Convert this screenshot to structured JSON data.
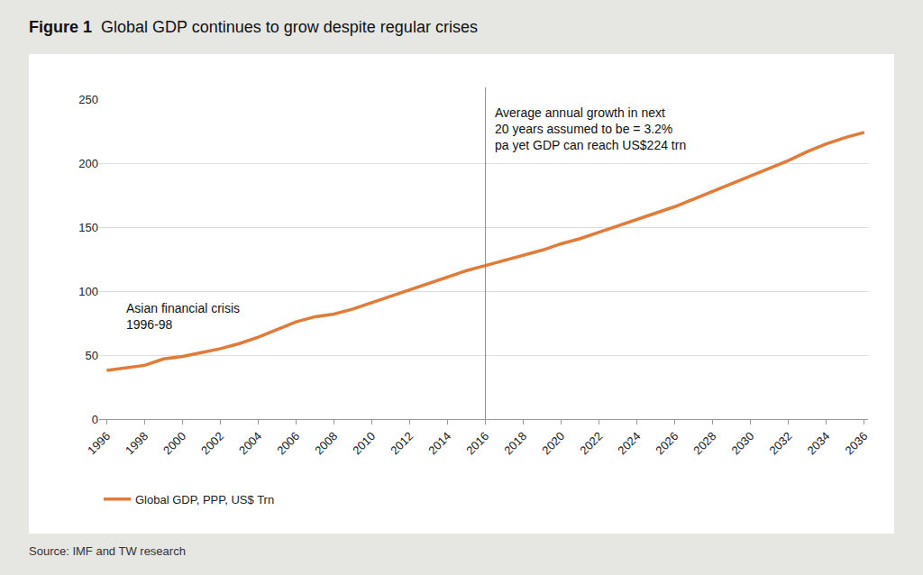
{
  "chart_data": {
    "type": "line",
    "title": "Figure 1  Global GDP continues to grow despite regular crises",
    "source": "Source: IMF and TW research",
    "x": [
      1996,
      1997,
      1998,
      1999,
      2000,
      2001,
      2002,
      2003,
      2004,
      2005,
      2006,
      2007,
      2008,
      2009,
      2010,
      2011,
      2012,
      2013,
      2014,
      2015,
      2016,
      2017,
      2018,
      2019,
      2020,
      2021,
      2022,
      2023,
      2024,
      2025,
      2026,
      2027,
      2028,
      2029,
      2030,
      2031,
      2032,
      2033,
      2034,
      2035,
      2036
    ],
    "series": [
      {
        "name": "Global GDP, PPP, US$ Trn",
        "color": "#e07b39",
        "values": [
          38,
          40,
          42,
          47,
          49,
          52,
          55,
          59,
          64,
          70,
          76,
          80,
          82,
          86,
          91,
          96,
          101,
          106,
          111,
          116,
          120,
          124,
          128,
          132,
          137,
          141,
          146,
          151,
          156,
          161,
          166,
          172,
          178,
          184,
          190,
          196,
          202,
          209,
          215,
          220,
          224
        ]
      }
    ],
    "xlim": [
      1995.6,
      2036.2
    ],
    "xticks": [
      1996,
      1998,
      2000,
      2002,
      2004,
      2006,
      2008,
      2010,
      2012,
      2014,
      2016,
      2018,
      2020,
      2022,
      2024,
      2026,
      2028,
      2030,
      2032,
      2034,
      2036
    ],
    "ylim": [
      0,
      250
    ],
    "yticks": [
      0,
      50,
      100,
      150,
      200,
      250
    ],
    "grid": true,
    "legend": "bottom left",
    "annotations": [
      {
        "text": "Asian financial crisis\n1996-98",
        "x": 1996
      },
      {
        "text": "Average annual growth in next\n20 years assumed to be = 3.2%\npa yet GDP can reach US$224 trn",
        "x": 2016
      }
    ]
  }
}
